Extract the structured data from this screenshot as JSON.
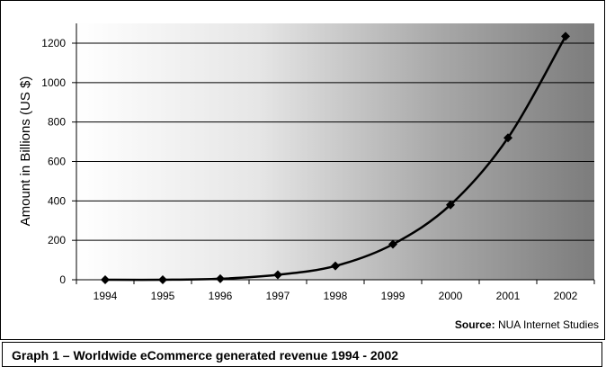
{
  "chart_data": {
    "type": "line",
    "categories": [
      "1994",
      "1995",
      "1996",
      "1997",
      "1998",
      "1999",
      "2000",
      "2001",
      "2002"
    ],
    "series": [
      {
        "values": [
          0,
          0,
          5,
          25,
          70,
          180,
          380,
          720,
          1235
        ]
      }
    ],
    "ylabel": "Amount in Billions (US $)",
    "ylim": [
      0,
      1200
    ],
    "yticks": [
      "0",
      "200",
      "400",
      "600",
      "800",
      "1000",
      "1200"
    ],
    "grid": true,
    "marker": "diamond",
    "colors": {
      "line": "#000000",
      "grid": "#000000"
    }
  },
  "source": {
    "label": "Source:",
    "text": "NUA Internet Studies"
  },
  "caption": "Graph 1 – Worldwide eCommerce generated revenue 1994 - 2002"
}
